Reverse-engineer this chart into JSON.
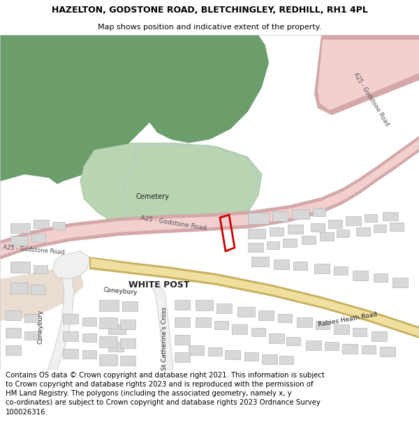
{
  "title": "HAZELTON, GODSTONE ROAD, BLETCHINGLEY, REDHILL, RH1 4PL",
  "subtitle": "Map shows position and indicative extent of the property.",
  "footer_line1": "Contains OS data © Crown copyright and database right 2021. This information is subject",
  "footer_line2": "to Crown copyright and database rights 2023 and is reproduced with the permission of",
  "footer_line3": "HM Land Registry. The polygons (including the associated geometry, namely x, y",
  "footer_line4": "co-ordinates) are subject to Crown copyright and database rights 2023 Ordnance Survey",
  "footer_line5": "100026316.",
  "map_bg": "#ffffff",
  "green_dark": "#6b9e6b",
  "green_mid": "#8ab88a",
  "green_light": "#b8d4b0",
  "green_very_light": "#c8dcc4",
  "road_pink_fill": "#f2d0d0",
  "road_pink_edge": "#d4a8a8",
  "road_yellow_fill": "#f0e0a0",
  "road_yellow_edge": "#c8b060",
  "building_fill": "#d8d8d8",
  "building_edge": "#aaaaaa",
  "plot_color": "#cc0000",
  "text_dark": "#222222",
  "text_road": "#555555",
  "tan_area": "#e8ddd0"
}
